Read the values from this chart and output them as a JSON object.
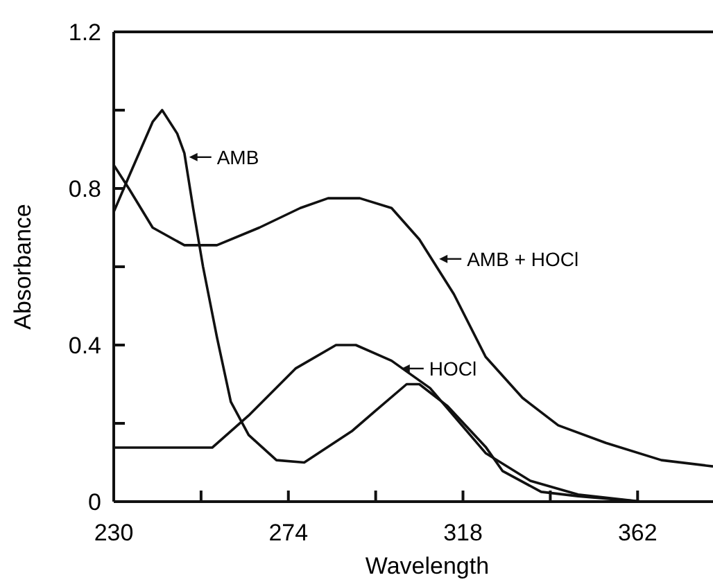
{
  "chart_data": {
    "type": "line",
    "xlabel": "Wavelength",
    "ylabel": "Absorbance",
    "xlim": [
      230,
      381
    ],
    "ylim": [
      0,
      1.2
    ],
    "xticks": [
      230,
      {
        "value": 252,
        "label": null
      },
      274,
      {
        "value": 296,
        "label": null
      },
      318,
      {
        "value": 340,
        "label": null
      },
      362
    ],
    "yticks": [
      0,
      {
        "value": 0.2,
        "label": null
      },
      0.4,
      {
        "value": 0.6,
        "label": null
      },
      0.8,
      {
        "value": 1.0,
        "label": null
      },
      1.2
    ],
    "grid": false,
    "line_style": "solid",
    "series": [
      {
        "color": "#111111",
        "x": [
          230,
          233.8,
          239.8,
          242.2,
          246,
          247.8,
          250,
          252.5,
          256,
          259.5,
          264,
          271,
          278,
          290,
          295.7,
          303.8,
          307,
          314,
          323.7,
          328,
          337.7,
          347,
          363,
          381
        ],
        "values": [
          0.74,
          0.83,
          0.97,
          1.0,
          0.94,
          0.89,
          0.75,
          0.6,
          0.42,
          0.255,
          0.17,
          0.106,
          0.1,
          0.18,
          0.23,
          0.3,
          0.3,
          0.245,
          0.14,
          0.078,
          0.025,
          0.014,
          0,
          0
        ]
      },
      {
        "color": "#111111",
        "x": [
          230,
          233.8,
          239.8,
          247.8,
          256,
          266.7,
          277,
          284,
          292,
          300,
          307,
          315.7,
          323.7,
          333,
          342,
          354,
          368,
          381
        ],
        "values": [
          0.86,
          0.8,
          0.7,
          0.655,
          0.655,
          0.7,
          0.75,
          0.775,
          0.775,
          0.75,
          0.67,
          0.53,
          0.37,
          0.265,
          0.195,
          0.15,
          0.106,
          0.09
        ]
      },
      {
        "color": "#111111",
        "x": [
          230,
          254.8,
          264,
          275.8,
          286,
          291,
          300,
          309.7,
          323.7,
          335,
          347,
          363,
          381
        ],
        "values": [
          0.138,
          0.138,
          0.22,
          0.34,
          0.4,
          0.4,
          0.36,
          0.29,
          0.124,
          0.053,
          0.018,
          0,
          0
        ]
      }
    ],
    "annotations": [
      {
        "text": "AMB",
        "x": 249,
        "y": 0.88
      },
      {
        "text": "HOCl",
        "x": 302.5,
        "y": 0.34
      },
      {
        "text": "AMB + HOCl",
        "x": 312,
        "y": 0.62
      }
    ]
  }
}
